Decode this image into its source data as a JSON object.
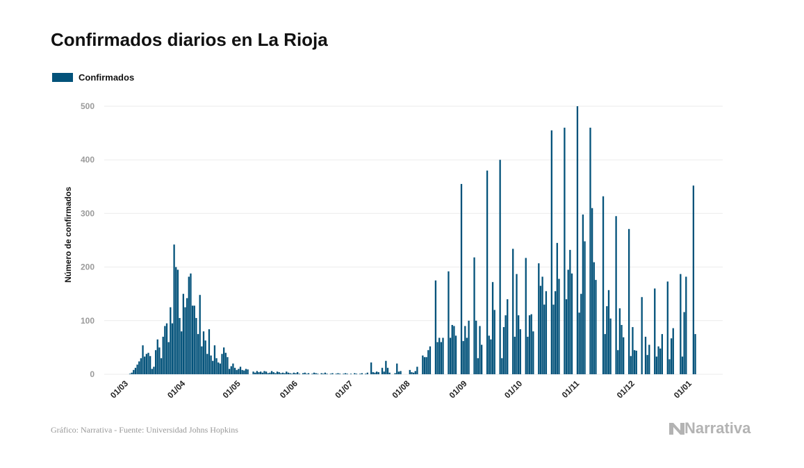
{
  "title": "Confirmados diarios en La Rioja",
  "footer": "Gráfico: Narrativa - Fuente: Universidad Johns Hopkins",
  "logo": "Narrativa",
  "colors": {
    "bar": "#03527a",
    "grid": "#ebebeb",
    "tick_label": "#9a9a9a"
  },
  "chart_data": {
    "type": "bar",
    "title": "Confirmados diarios en La Rioja",
    "xlabel": "",
    "ylabel": "Número de confirmados",
    "ylim": [
      0,
      500
    ],
    "yticks": [
      0,
      100,
      200,
      300,
      400,
      500
    ],
    "xticks": [
      {
        "date": "2020-03-01",
        "label": "01/03"
      },
      {
        "date": "2020-04-01",
        "label": "01/04"
      },
      {
        "date": "2020-05-01",
        "label": "01/05"
      },
      {
        "date": "2020-06-01",
        "label": "01/06"
      },
      {
        "date": "2020-07-01",
        "label": "01/07"
      },
      {
        "date": "2020-08-01",
        "label": "01/08"
      },
      {
        "date": "2020-09-01",
        "label": "01/09"
      },
      {
        "date": "2020-10-01",
        "label": "01/10"
      },
      {
        "date": "2020-11-01",
        "label": "01/11"
      },
      {
        "date": "2020-12-01",
        "label": "01/12"
      },
      {
        "date": "2021-01-01",
        "label": "01/01"
      }
    ],
    "grid": true,
    "legend": "top-left",
    "series": [
      {
        "name": "Confirmados",
        "daily_values_by_month": {
          "2020-03": [
            0,
            0,
            0,
            1,
            3,
            8,
            12,
            18,
            24,
            30,
            54,
            33,
            38,
            40,
            34,
            10,
            14,
            45,
            65,
            50,
            30,
            70,
            90,
            95,
            60,
            125,
            95,
            242,
            200,
            195,
            105
          ],
          "2020-04": [
            80,
            150,
            125,
            142,
            182,
            188,
            128,
            128,
            105,
            75,
            148,
            52,
            80,
            63,
            38,
            84,
            35,
            25,
            54,
            30,
            22,
            20,
            38,
            50,
            40,
            32,
            10,
            15,
            20,
            12
          ],
          "2020-05": [
            8,
            10,
            14,
            8,
            7,
            10,
            9,
            0,
            0,
            5,
            3,
            6,
            4,
            5,
            3,
            6,
            5,
            2,
            3,
            6,
            4,
            2,
            5,
            4,
            2,
            3,
            2,
            5,
            3,
            2,
            1
          ],
          "2020-06": [
            3,
            2,
            4,
            1,
            0,
            2,
            3,
            1,
            2,
            0,
            1,
            3,
            2,
            1,
            0,
            2,
            1,
            3,
            1,
            0,
            1,
            2,
            0,
            1,
            2,
            1,
            0,
            1,
            2,
            1
          ],
          "2020-07": [
            0,
            1,
            0,
            2,
            1,
            0,
            1,
            2,
            0,
            1,
            3,
            0,
            22,
            4,
            3,
            5,
            4,
            0,
            12,
            5,
            25,
            12,
            3,
            0,
            0,
            2,
            20,
            5,
            6,
            0,
            0
          ],
          "2020-08": [
            0,
            0,
            8,
            4,
            3,
            6,
            14,
            0,
            0,
            35,
            32,
            32,
            45,
            52,
            0,
            0,
            175,
            60,
            68,
            60,
            68,
            0,
            0,
            192,
            68,
            92,
            90,
            72,
            0,
            0,
            355
          ],
          "2020-09": [
            62,
            90,
            68,
            100,
            0,
            0,
            218,
            100,
            30,
            90,
            55,
            0,
            0,
            380,
            72,
            65,
            172,
            120,
            0,
            0,
            400,
            30,
            88,
            110,
            140,
            0,
            0,
            234,
            70,
            187
          ],
          "2020-10": [
            110,
            84,
            0,
            0,
            217,
            70,
            110,
            112,
            80,
            0,
            0,
            207,
            165,
            182,
            130,
            155,
            0,
            0,
            455,
            130,
            155,
            245,
            178,
            0,
            0,
            460,
            140,
            195,
            232,
            188,
            0
          ],
          "2020-11": [
            0,
            500,
            115,
            150,
            298,
            248,
            0,
            0,
            460,
            310,
            209,
            176,
            0,
            0,
            0,
            332,
            75,
            127,
            157,
            104,
            0,
            0,
            295,
            45,
            123,
            92,
            69,
            0,
            0,
            271
          ],
          "2020-12": [
            34,
            88,
            45,
            44,
            0,
            0,
            144,
            0,
            70,
            36,
            55,
            0,
            0,
            160,
            33,
            52,
            48,
            75,
            0,
            0,
            173,
            28,
            67,
            86,
            0,
            0,
            0,
            187,
            33,
            116,
            182
          ],
          "2021-01": [
            0,
            0,
            0,
            352,
            75
          ]
        }
      }
    ]
  }
}
